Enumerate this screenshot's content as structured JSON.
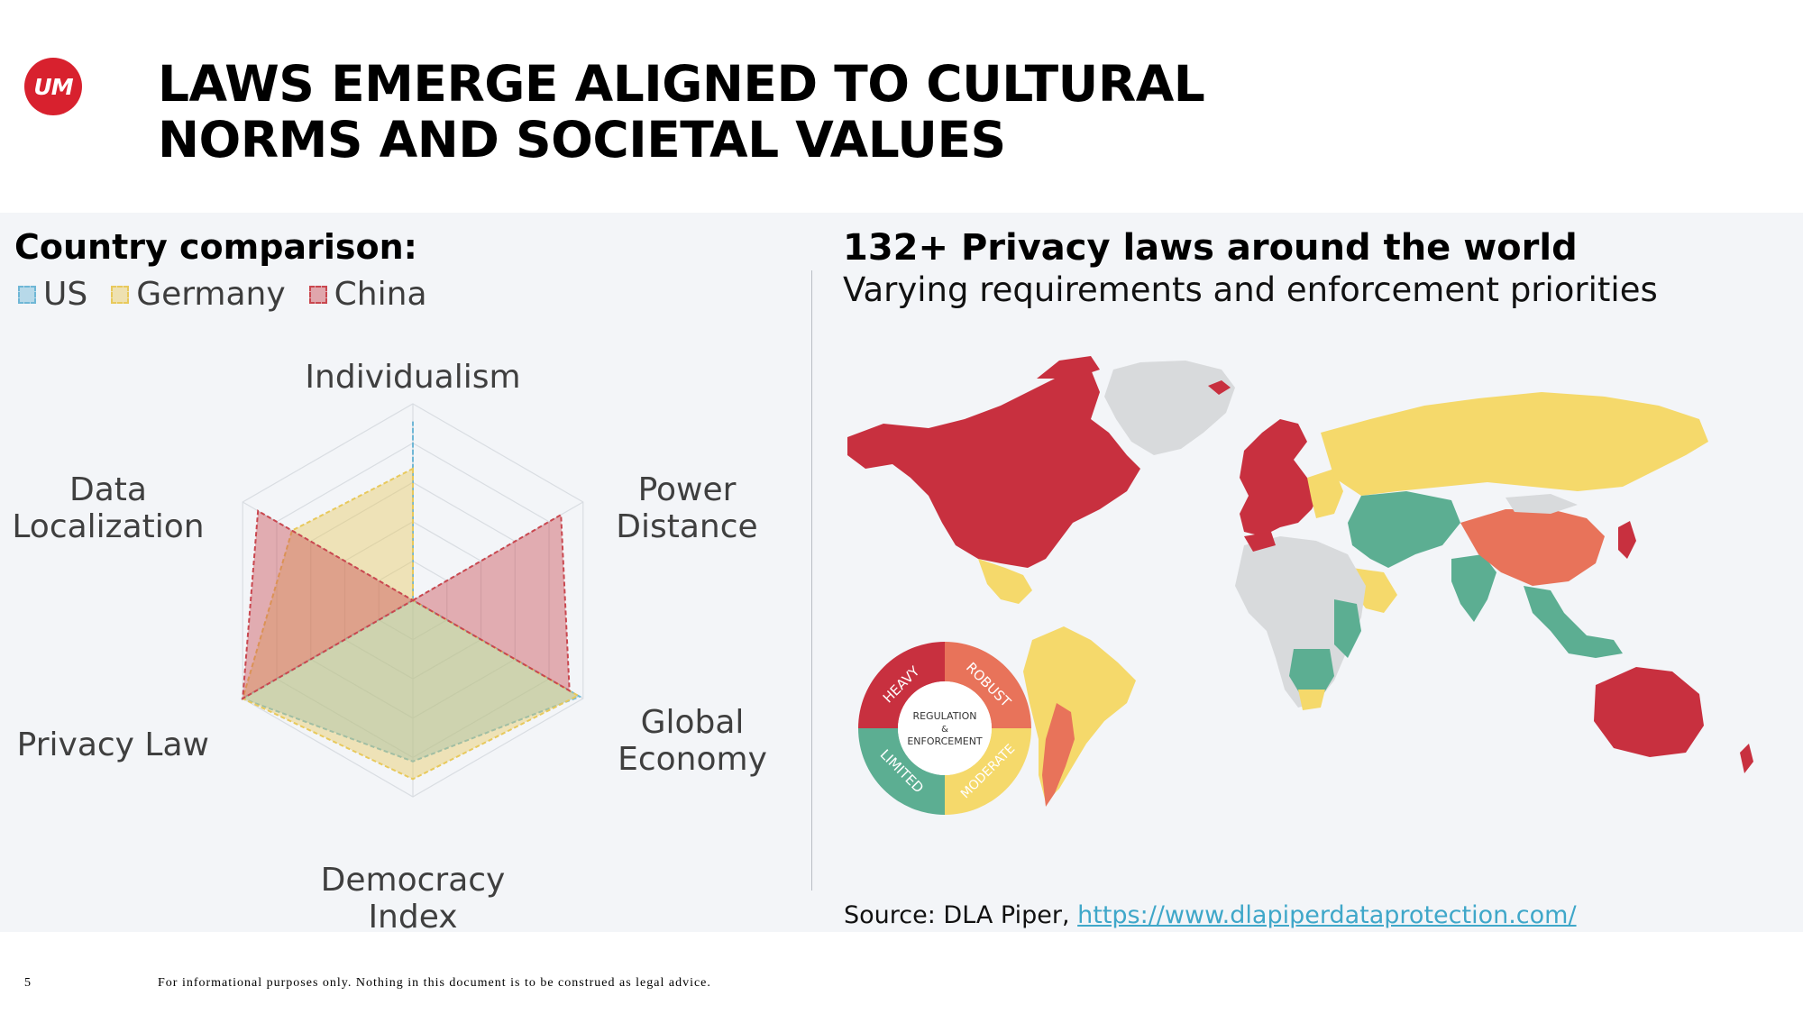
{
  "logo": {
    "text": "UM",
    "color": "#d8212e"
  },
  "title": {
    "line1": "LAWS EMERGE ALIGNED TO CULTURAL",
    "line2": "NORMS AND SOCIETAL VALUES"
  },
  "left": {
    "heading": "Country comparison:",
    "legend": [
      {
        "label": "US",
        "color": "#6fb7d6"
      },
      {
        "label": "Germany",
        "color": "#e8c95c"
      },
      {
        "label": "China",
        "color": "#c9474f"
      }
    ]
  },
  "chart_data": {
    "type": "radar",
    "axes": [
      "Individualism",
      "Power Distance",
      "Global Economy",
      "Democracy Index",
      "Privacy Law",
      "Data Localization"
    ],
    "axis_label_lines": [
      [
        "Individualism"
      ],
      [
        "Power",
        "Distance"
      ],
      [
        "Global",
        "Economy"
      ],
      [
        "Democracy",
        "Index"
      ],
      [
        "Privacy Law"
      ],
      [
        "Data",
        "Localization"
      ]
    ],
    "max": 1,
    "grid_levels": 5,
    "series": [
      {
        "name": "US",
        "color": "#6fb7d6",
        "values": [
          0.91,
          0.0,
          0.98,
          0.82,
          1.0,
          0.0
        ]
      },
      {
        "name": "Germany",
        "color": "#e8c95c",
        "values": [
          0.67,
          0.0,
          0.97,
          0.91,
          1.0,
          0.71
        ]
      },
      {
        "name": "China",
        "color": "#c9474f",
        "values": [
          0.0,
          0.87,
          0.92,
          0.0,
          1.0,
          0.91
        ]
      }
    ]
  },
  "right": {
    "heading": "132+ Privacy laws around the world",
    "subheading": "Varying requirements and enforcement priorities",
    "map_legend": {
      "center_line1": "REGULATION",
      "center_line2": "&",
      "center_line3": "ENFORCEMENT",
      "heavy": "HEAVY",
      "robust": "ROBUST",
      "moderate": "MODERATE",
      "limited": "LIMITED",
      "colors": {
        "heavy": "#c8303f",
        "robust": "#e8735a",
        "moderate": "#f5d96b",
        "limited": "#5cae92",
        "none": "#d8dadc"
      }
    }
  },
  "source": {
    "prefix": "Source: DLA Piper, ",
    "link": "https://www.dlapiperdataprotection.com/"
  },
  "footer": {
    "page_number": "5",
    "disclaimer": "For informational purposes only. Nothing in this document is to be construed as legal advice."
  }
}
